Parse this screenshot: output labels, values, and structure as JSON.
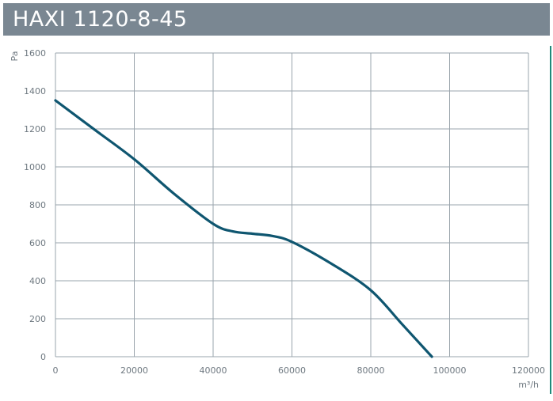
{
  "header": {
    "title": "HAXI 1120-8-45"
  },
  "colors": {
    "header_bg": "#7a8792",
    "curve": "#0f5670",
    "grid": "#9aa4ac",
    "accent": "#1f8a7a"
  },
  "chart_data": {
    "type": "line",
    "title": "HAXI 1120-8-45",
    "xlabel": "m³/h",
    "ylabel": "Pa",
    "xlim": [
      0,
      120000
    ],
    "ylim": [
      0,
      1600
    ],
    "grid": true,
    "x_ticks": [
      0,
      20000,
      40000,
      60000,
      80000,
      100000,
      120000
    ],
    "y_ticks": [
      0,
      200,
      400,
      600,
      800,
      1000,
      1200,
      1400,
      1600
    ],
    "series": [
      {
        "x": [
          0,
          10000,
          20000,
          30000,
          40000,
          45000,
          50000,
          55000,
          60000,
          70000,
          80000,
          88000,
          95500
        ],
        "y": [
          1350,
          1195,
          1040,
          860,
          700,
          660,
          648,
          636,
          605,
          490,
          350,
          170,
          0
        ]
      }
    ]
  }
}
